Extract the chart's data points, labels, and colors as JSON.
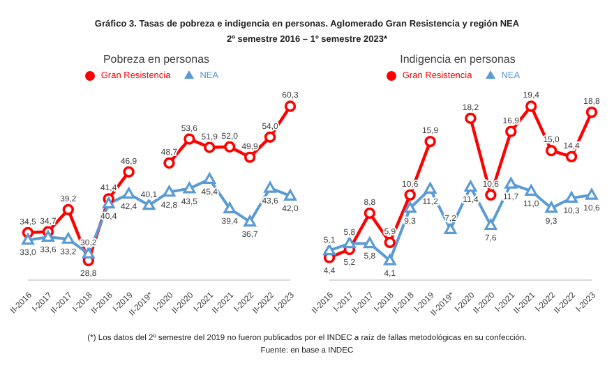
{
  "chart_data": [
    {
      "type": "line",
      "title": "Pobreza en personas",
      "annotations": [
        "Gráfico 3. Tasas de pobreza e indigencia en personas. Aglomerado Gran Resistencia y región NEA",
        "2º semestre 2016 – 1º semestre 2023*"
      ],
      "categories": [
        "II-2016",
        "I-2017",
        "II-2017",
        "I-2018",
        "II-2018",
        "I-2019",
        "II-2019*",
        "I-2020",
        "II-2020",
        "I-2021",
        "II-2021",
        "I-2022",
        "II-2022",
        "I-2023"
      ],
      "series": [
        {
          "name": "Gran Resistencia",
          "color": "#ff0000",
          "marker": "circle",
          "values": [
            34.5,
            34.7,
            39.2,
            28.8,
            41.4,
            46.9,
            null,
            48.7,
            53.6,
            51.9,
            52.0,
            49.9,
            54.0,
            60.3
          ],
          "value_labels": [
            "34,5",
            "34,7",
            "39,2",
            "28,8",
            "41,4",
            "46,9",
            null,
            "48,7",
            "53,6",
            "51,9",
            "52,0",
            "49,9",
            "54,0",
            "60,3"
          ]
        },
        {
          "name": "NEA",
          "color": "#5b9bd5",
          "marker": "triangle",
          "values": [
            33.0,
            33.6,
            33.2,
            30.2,
            40.4,
            42.4,
            40.1,
            42.8,
            43.5,
            45.4,
            39.4,
            36.7,
            43.6,
            42.0
          ],
          "value_labels": [
            "33,0",
            "33,6",
            "33,2",
            "30,2",
            "40,4",
            "42,4",
            "40,1",
            "42,8",
            "43,5",
            "45,4",
            "39,4",
            "36,7",
            "43,6",
            "42,0"
          ]
        }
      ],
      "legend": "top",
      "grid": false
    },
    {
      "type": "line",
      "title": "Indigencia en personas",
      "annotations": [
        "(*) Los datos del 2º semestre del 2019 no fueron publicados por el INDEC a raíz de fallas metodológicas en su confección. Fuente: en base a INDEC"
      ],
      "categories": [
        "II-2016",
        "I-2017",
        "II-2017",
        "I-2018",
        "II-2018",
        "I-2019",
        "II-2019*",
        "I-2020",
        "II-2020",
        "I-2021",
        "II-2021",
        "I-2022",
        "II-2022",
        "I-2023"
      ],
      "series": [
        {
          "name": "Gran Resistencia",
          "color": "#ff0000",
          "marker": "circle",
          "values": [
            4.4,
            5.2,
            8.8,
            5.9,
            10.6,
            15.9,
            null,
            18.2,
            10.6,
            16.9,
            19.4,
            15.0,
            14.4,
            18.8
          ],
          "value_labels": [
            "4,4",
            "5,2",
            "8,8",
            "5,9",
            "10,6",
            "15,9",
            null,
            "18,2",
            "10,6",
            "16,9",
            "19,4",
            "15,0",
            "14,4",
            "18,8"
          ]
        },
        {
          "name": "NEA",
          "color": "#5b9bd5",
          "marker": "triangle",
          "values": [
            5.1,
            5.8,
            5.8,
            4.1,
            9.3,
            11.2,
            7.2,
            11.4,
            7.6,
            11.7,
            11.0,
            9.3,
            10.3,
            10.6
          ],
          "value_labels": [
            "5,1",
            "5,8",
            "5,8",
            "4,1",
            "9,3",
            "11,2",
            "7,2",
            "11,4",
            "7,6",
            "11,7",
            "11,0",
            "9,3",
            "10,3",
            "10,6"
          ]
        }
      ],
      "legend": "top",
      "grid": false
    }
  ]
}
